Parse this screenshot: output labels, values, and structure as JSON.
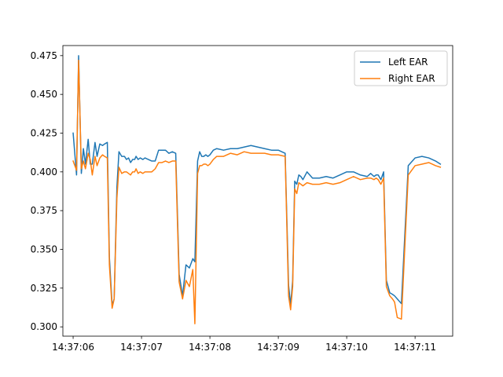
{
  "chart_data": {
    "type": "line",
    "title": "",
    "xlabel": "",
    "ylabel": "",
    "grid": false,
    "legend_position": "top-right",
    "x_unit": "time (HH:MM:SS)",
    "x_ticks": [
      "14:37:06",
      "14:37:07",
      "14:37:08",
      "14:37:09",
      "14:37:10",
      "14:37:11"
    ],
    "y_ticks": [
      "0.300",
      "0.325",
      "0.350",
      "0.375",
      "0.400",
      "0.425",
      "0.450",
      "0.475"
    ],
    "xlim": [
      "14:37:05.85",
      "14:37:11.55"
    ],
    "ylim": [
      0.294,
      0.4815
    ],
    "x": [
      "14:37:06.00",
      "14:37:06.05",
      "14:37:06.08",
      "14:37:06.12",
      "14:37:06.15",
      "14:37:06.18",
      "14:37:06.22",
      "14:37:06.25",
      "14:37:06.28",
      "14:37:06.32",
      "14:37:06.35",
      "14:37:06.39",
      "14:37:06.43",
      "14:37:06.46",
      "14:37:06.50",
      "14:37:06.53",
      "14:37:06.57",
      "14:37:06.60",
      "14:37:06.64",
      "14:37:06.67",
      "14:37:06.71",
      "14:37:06.75",
      "14:37:06.78",
      "14:37:06.81",
      "14:37:06.84",
      "14:37:06.87",
      "14:37:06.90",
      "14:37:06.92",
      "14:37:06.95",
      "14:37:06.98",
      "14:37:07.02",
      "14:37:07.05",
      "14:37:07.10",
      "14:37:07.15",
      "14:37:07.20",
      "14:37:07.25",
      "14:37:07.30",
      "14:37:07.35",
      "14:37:07.40",
      "14:37:07.45",
      "14:37:07.50",
      "14:37:07.55",
      "14:37:07.60",
      "14:37:07.65",
      "14:37:07.70",
      "14:37:07.75",
      "14:37:07.78",
      "14:37:07.82",
      "14:37:07.85",
      "14:37:07.88",
      "14:37:07.91",
      "14:37:07.94",
      "14:37:07.97",
      "14:37:08.00",
      "14:37:08.05",
      "14:37:08.10",
      "14:37:08.20",
      "14:37:08.30",
      "14:37:08.40",
      "14:37:08.50",
      "14:37:08.60",
      "14:37:08.70",
      "14:37:08.80",
      "14:37:08.90",
      "14:37:09.00",
      "14:37:09.10",
      "14:37:09.15",
      "14:37:09.18",
      "14:37:09.21",
      "14:37:09.24",
      "14:37:09.27",
      "14:37:09.30",
      "14:37:09.33",
      "14:37:09.36",
      "14:37:09.42",
      "14:37:09.50",
      "14:37:09.60",
      "14:37:09.70",
      "14:37:09.80",
      "14:37:09.90",
      "14:37:10.00",
      "14:37:10.10",
      "14:37:10.20",
      "14:37:10.30",
      "14:37:10.35",
      "14:37:10.40",
      "14:37:10.43",
      "14:37:10.46",
      "14:37:10.50",
      "14:37:10.54",
      "14:37:10.58",
      "14:37:10.63",
      "14:37:10.67",
      "14:37:10.70",
      "14:37:10.74",
      "14:37:10.80",
      "14:37:10.90",
      "14:37:11.00",
      "14:37:11.10",
      "14:37:11.20",
      "14:37:11.30",
      "14:37:11.37"
    ],
    "series": [
      {
        "name": "Left EAR",
        "color": "#1f77b4",
        "values": [
          0.425,
          0.398,
          0.475,
          0.399,
          0.415,
          0.405,
          0.421,
          0.405,
          0.405,
          0.419,
          0.41,
          0.418,
          0.417,
          0.418,
          0.419,
          0.345,
          0.314,
          0.318,
          0.39,
          0.413,
          0.41,
          0.41,
          0.408,
          0.409,
          0.406,
          0.408,
          0.408,
          0.41,
          0.408,
          0.409,
          0.408,
          0.409,
          0.408,
          0.407,
          0.407,
          0.414,
          0.414,
          0.414,
          0.412,
          0.413,
          0.412,
          0.334,
          0.32,
          0.34,
          0.338,
          0.344,
          0.342,
          0.407,
          0.413,
          0.41,
          0.41,
          0.411,
          0.41,
          0.411,
          0.414,
          0.415,
          0.414,
          0.415,
          0.415,
          0.416,
          0.417,
          0.416,
          0.415,
          0.414,
          0.414,
          0.412,
          0.327,
          0.314,
          0.33,
          0.394,
          0.392,
          0.398,
          0.397,
          0.395,
          0.4,
          0.396,
          0.396,
          0.397,
          0.396,
          0.398,
          0.4,
          0.4,
          0.398,
          0.397,
          0.399,
          0.397,
          0.398,
          0.398,
          0.395,
          0.4,
          0.33,
          0.322,
          0.321,
          0.32,
          0.318,
          0.315,
          0.404,
          0.409,
          0.41,
          0.409,
          0.407,
          0.405
        ]
      },
      {
        "name": "Right EAR",
        "color": "#ff7f0e",
        "values": [
          0.407,
          0.401,
          0.472,
          0.402,
          0.407,
          0.402,
          0.412,
          0.408,
          0.398,
          0.41,
          0.404,
          0.409,
          0.411,
          0.41,
          0.409,
          0.34,
          0.312,
          0.318,
          0.383,
          0.403,
          0.399,
          0.4,
          0.4,
          0.399,
          0.398,
          0.4,
          0.4,
          0.402,
          0.399,
          0.4,
          0.399,
          0.4,
          0.4,
          0.4,
          0.402,
          0.406,
          0.406,
          0.407,
          0.406,
          0.407,
          0.407,
          0.329,
          0.318,
          0.33,
          0.326,
          0.337,
          0.302,
          0.399,
          0.404,
          0.404,
          0.405,
          0.405,
          0.404,
          0.405,
          0.408,
          0.41,
          0.41,
          0.412,
          0.411,
          0.413,
          0.412,
          0.412,
          0.412,
          0.411,
          0.411,
          0.41,
          0.32,
          0.311,
          0.326,
          0.389,
          0.386,
          0.393,
          0.392,
          0.391,
          0.393,
          0.392,
          0.392,
          0.393,
          0.392,
          0.393,
          0.395,
          0.397,
          0.395,
          0.396,
          0.396,
          0.395,
          0.396,
          0.395,
          0.392,
          0.396,
          0.326,
          0.32,
          0.318,
          0.316,
          0.306,
          0.305,
          0.398,
          0.404,
          0.405,
          0.406,
          0.404,
          0.403
        ]
      }
    ]
  }
}
